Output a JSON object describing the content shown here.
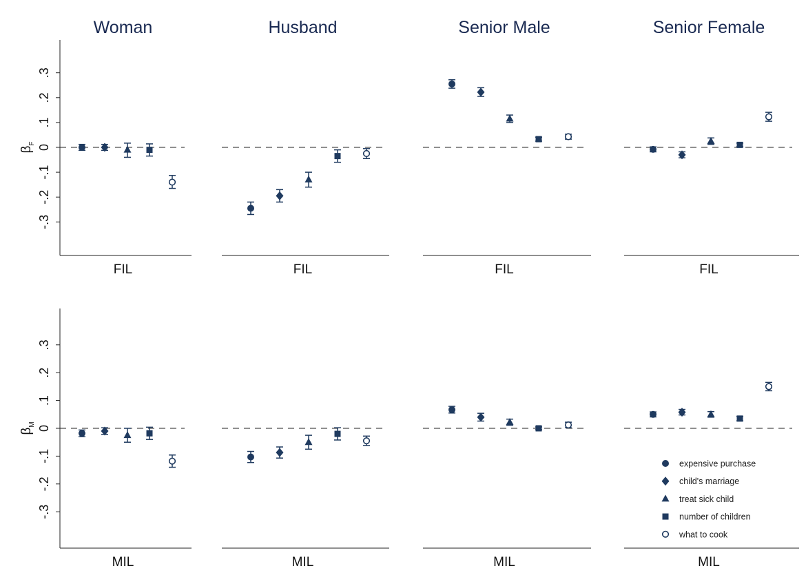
{
  "colors": {
    "marker": "#1f3a5f",
    "axis": "#222222",
    "title": "#1a2a52"
  },
  "legend": {
    "placement": "bottom-right",
    "items": [
      {
        "label": "expensive purchase",
        "marker": "filled-circle"
      },
      {
        "label": "child's marriage",
        "marker": "filled-diamond"
      },
      {
        "label": "treat sick child",
        "marker": "filled-triangle"
      },
      {
        "label": "number of children",
        "marker": "filled-square"
      },
      {
        "label": "what to cook",
        "marker": "hollow-circle"
      }
    ]
  },
  "chart_data": {
    "type": "scatter",
    "layout": "grid 2 rows x 4 columns, shared y axis per row",
    "columns": [
      "Woman",
      "Husband",
      "Senior Male",
      "Senior Female"
    ],
    "series_order": [
      "expensive purchase",
      "child's marriage",
      "treat sick child",
      "number of children",
      "what to cook"
    ],
    "reference_line": {
      "y": 0,
      "style": "dashed"
    },
    "rows": [
      {
        "ylabel": "β",
        "ylabel_sub": "F",
        "xlabel": "FIL",
        "ylim": [
          -0.43,
          0.43
        ],
        "yticks": [
          0.3,
          0.2,
          0.1,
          0,
          -0.1,
          -0.2,
          -0.3
        ],
        "ytick_labels": [
          ".3",
          ".2",
          ".1",
          "0",
          "-.1",
          "-.2",
          "-.3"
        ],
        "panels": [
          {
            "estimates": [
              0.0,
              0.0,
              -0.01,
              -0.01,
              -0.14
            ],
            "ci_low": [
              -0.012,
              -0.012,
              -0.04,
              -0.035,
              -0.165
            ],
            "ci_high": [
              0.012,
              0.012,
              0.017,
              0.014,
              -0.113
            ]
          },
          {
            "estimates": [
              -0.245,
              -0.195,
              -0.13,
              -0.035,
              -0.025
            ],
            "ci_low": [
              -0.27,
              -0.22,
              -0.16,
              -0.06,
              -0.045
            ],
            "ci_high": [
              -0.22,
              -0.17,
              -0.1,
              -0.01,
              -0.005
            ]
          },
          {
            "estimates": [
              0.255,
              0.222,
              0.115,
              0.033,
              0.043
            ],
            "ci_low": [
              0.238,
              0.205,
              0.1,
              0.025,
              0.033
            ],
            "ci_high": [
              0.272,
              0.24,
              0.13,
              0.041,
              0.053
            ]
          },
          {
            "estimates": [
              -0.008,
              -0.03,
              0.025,
              0.01,
              0.123
            ],
            "ci_low": [
              -0.018,
              -0.042,
              0.012,
              0.003,
              0.105
            ],
            "ci_high": [
              0.002,
              -0.018,
              0.038,
              0.017,
              0.141
            ]
          }
        ]
      },
      {
        "ylabel": "β",
        "ylabel_sub": "M",
        "xlabel": "MIL",
        "ylim": [
          -0.43,
          0.43
        ],
        "yticks": [
          0.3,
          0.2,
          0.1,
          0,
          -0.1,
          -0.2,
          -0.3
        ],
        "ytick_labels": [
          ".3",
          ".2",
          ".1",
          "0",
          "-.1",
          "-.2",
          "-.3"
        ],
        "panels": [
          {
            "estimates": [
              -0.018,
              -0.01,
              -0.025,
              -0.018,
              -0.118
            ],
            "ci_low": [
              -0.03,
              -0.022,
              -0.05,
              -0.04,
              -0.14
            ],
            "ci_high": [
              -0.006,
              0.002,
              0.0,
              0.004,
              -0.096
            ]
          },
          {
            "estimates": [
              -0.103,
              -0.087,
              -0.05,
              -0.02,
              -0.045
            ],
            "ci_low": [
              -0.123,
              -0.107,
              -0.075,
              -0.042,
              -0.062
            ],
            "ci_high": [
              -0.083,
              -0.067,
              -0.025,
              0.002,
              -0.028
            ]
          },
          {
            "estimates": [
              0.067,
              0.04,
              0.022,
              0.0,
              0.012
            ],
            "ci_low": [
              0.055,
              0.026,
              0.011,
              -0.005,
              0.002
            ],
            "ci_high": [
              0.079,
              0.054,
              0.033,
              0.005,
              0.022
            ]
          },
          {
            "estimates": [
              0.05,
              0.058,
              0.05,
              0.035,
              0.15
            ],
            "ci_low": [
              0.041,
              0.048,
              0.04,
              0.027,
              0.135
            ],
            "ci_high": [
              0.059,
              0.068,
              0.06,
              0.043,
              0.165
            ]
          }
        ]
      }
    ]
  }
}
